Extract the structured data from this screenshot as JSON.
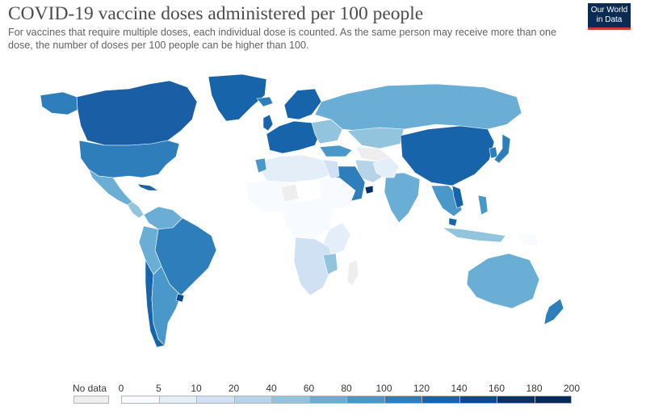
{
  "header": {
    "title": "COVID-19 vaccine doses administered per 100 people",
    "subtitle": "For vaccines that require multiple doses, each individual dose is counted. As the same person may receive more than one dose, the number of doses per 100 people can be higher than 100."
  },
  "logo": {
    "line1": "Our World",
    "line2": "in Data"
  },
  "legend": {
    "no_data_label": "No data",
    "no_data_color": "#eeeeee",
    "ticks": [
      "0",
      "5",
      "10",
      "20",
      "40",
      "60",
      "80",
      "100",
      "120",
      "140",
      "160",
      "180",
      "200"
    ],
    "colors": [
      "#f7fbff",
      "#e3eef9",
      "#cfe1f2",
      "#b5d4e9",
      "#93c4de",
      "#6aaed6",
      "#4a98c9",
      "#2e7ebc",
      "#1864aa",
      "#0a4a90",
      "#08306b",
      "#062a5e"
    ]
  }
}
